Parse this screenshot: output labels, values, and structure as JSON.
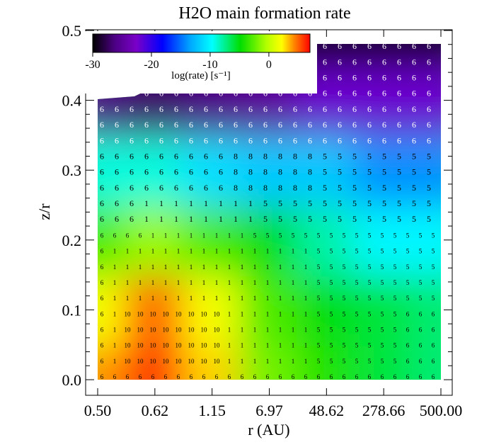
{
  "chart_data": {
    "type": "heatmap",
    "title": "H2O main formation rate",
    "xlabel": "r (AU)",
    "ylabel": "z/r",
    "x_ticks": [
      "0.50",
      "0.62",
      "1.15",
      "6.97",
      "48.62",
      "278.66",
      "500.00"
    ],
    "y_ticks": [
      "0.0",
      "0.1",
      "0.2",
      "0.3",
      "0.4",
      "0.5"
    ],
    "ylim": [
      -0.02,
      0.53
    ],
    "colorbar": {
      "label": "log(rate) [s⁻¹]",
      "ticks": [
        "-30",
        "-20",
        "-10",
        "0"
      ],
      "range": [
        -30,
        7
      ],
      "colormap": "rainbow (black-purple-blue-cyan-green-yellow-red)",
      "placement": "top-left"
    },
    "grid": false,
    "columns_r_au": [
      0.5,
      0.62,
      1.15,
      6.97,
      48.62,
      278.66,
      500.0
    ],
    "rows_z_over_r": [
      0.0,
      0.1,
      0.2,
      0.3,
      0.4,
      0.5
    ],
    "log_rate_grid": [
      [
        4,
        6,
        3,
        -2,
        -4,
        -6,
        -7
      ],
      [
        2,
        5,
        2,
        -3,
        -5,
        -6,
        -7
      ],
      [
        -3,
        -1,
        -3,
        -5,
        -8,
        -10,
        -10
      ],
      [
        -9,
        -9,
        -11,
        -12,
        -12,
        -14,
        -14
      ],
      [
        -26,
        -27,
        -26,
        -25,
        -22,
        -22,
        -22
      ],
      [
        null,
        null,
        -28,
        -29,
        -29,
        -29,
        -29
      ]
    ],
    "dominant_reaction_labels": [
      "1",
      "5",
      "6",
      "8",
      "9",
      "10"
    ]
  }
}
